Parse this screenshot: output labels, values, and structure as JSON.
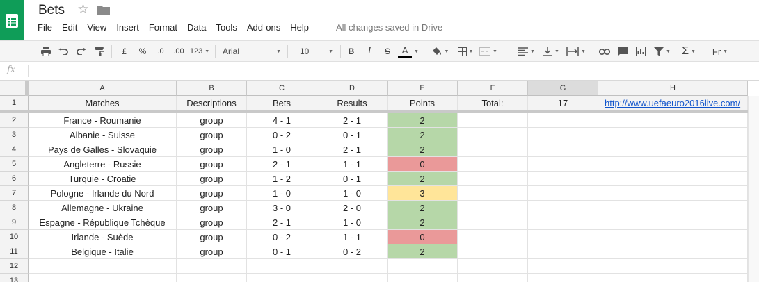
{
  "app": {
    "title": "Bets",
    "logo_color": "#0f9d58",
    "save_status": "All changes saved in Drive",
    "menu": [
      "File",
      "Edit",
      "View",
      "Insert",
      "Format",
      "Data",
      "Tools",
      "Add-ons",
      "Help"
    ]
  },
  "toolbar": {
    "currency": "£",
    "percent": "%",
    "decrease_decimals": ".0",
    "increase_decimals": ".00",
    "number_format": "123",
    "font": "Arial",
    "font_size": "10",
    "bold": "B",
    "italic": "I",
    "strikethrough": "S",
    "text_color": "A",
    "function": "Σ",
    "input_tools": "Fr"
  },
  "formula_bar": {
    "fx": "fx",
    "value": ""
  },
  "grid": {
    "columns": [
      "A",
      "B",
      "C",
      "D",
      "E",
      "F",
      "G",
      "H"
    ],
    "selected_column": "G",
    "row_numbers": [
      "1",
      "2",
      "3",
      "4",
      "5",
      "6",
      "7",
      "8",
      "9",
      "10",
      "11",
      "12",
      "13"
    ],
    "header_row": [
      "Matches",
      "Descriptions",
      "Bets",
      "Results",
      "Points",
      "Total:",
      "17",
      "http://www.uefaeuro2016live.com/"
    ],
    "rows": [
      [
        "France - Roumanie",
        "group",
        "4 - 1",
        "2 - 1",
        "2"
      ],
      [
        "Albanie - Suisse",
        "group",
        "0 - 2",
        "0 - 1",
        "2"
      ],
      [
        "Pays de Galles - Slovaquie",
        "group",
        "1 - 0",
        "2 - 1",
        "2"
      ],
      [
        "Angleterre - Russie",
        "group",
        "2 - 1",
        "1 - 1",
        "0"
      ],
      [
        "Turquie - Croatie",
        "group",
        "1 - 2",
        "0 - 1",
        "2"
      ],
      [
        "Pologne - Irlande du Nord",
        "group",
        "1 - 0",
        "1 - 0",
        "3"
      ],
      [
        "Allemagne - Ukraine",
        "group",
        "3 - 0",
        "2 - 0",
        "2"
      ],
      [
        "Espagne - République Tchèque",
        "group",
        "2 - 1",
        "1 - 0",
        "2"
      ],
      [
        "Irlande - Suède",
        "group",
        "0 - 2",
        "1 - 1",
        "0"
      ],
      [
        "Belgique - Italie",
        "group",
        "0 - 1",
        "0 - 2",
        "2"
      ]
    ],
    "point_colors": {
      "0": "#ea9999",
      "2": "#b6d7a8",
      "3": "#ffe599"
    },
    "link_color": "#1155cc"
  }
}
